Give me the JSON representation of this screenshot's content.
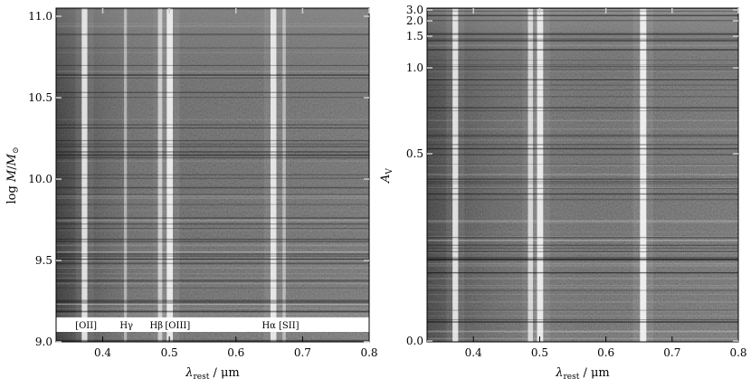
{
  "chart_data": [
    {
      "type": "heatmap",
      "panel": "left",
      "description_of_marks": "stacked rest-frame spectra sorted by stellar mass; bright vertical emission-line features",
      "xlabel_base": "λ",
      "xlabel_sub": "rest",
      "xlabel_unit": " / μm",
      "ylabel_prefix": "log ",
      "ylabel_var": "M",
      "ylabel_mid": "/",
      "ylabel_var2": "M",
      "ylabel_sub": "⊙",
      "xlim": [
        0.33,
        0.8
      ],
      "ylim": [
        9.0,
        11.05
      ],
      "xticks": [
        {
          "value": 0.4,
          "label": "0.4"
        },
        {
          "value": 0.5,
          "label": "0.5"
        },
        {
          "value": 0.6,
          "label": "0.6"
        },
        {
          "value": 0.7,
          "label": "0.7"
        },
        {
          "value": 0.8,
          "label": "0.8"
        }
      ],
      "yticks": [
        {
          "value": 9.0,
          "label": "9.0"
        },
        {
          "value": 9.5,
          "label": "9.5"
        },
        {
          "value": 10.0,
          "label": "10.0"
        },
        {
          "value": 10.5,
          "label": "10.5"
        },
        {
          "value": 11.0,
          "label": "11.0"
        }
      ],
      "emission_lines": [
        {
          "wavelength": 0.3727,
          "strength": 0.85
        },
        {
          "wavelength": 0.4341,
          "strength": 0.25
        },
        {
          "wavelength": 0.4861,
          "strength": 0.55
        },
        {
          "wavelength": 0.5007,
          "strength": 0.95
        },
        {
          "wavelength": 0.6563,
          "strength": 0.9
        },
        {
          "wavelength": 0.6724,
          "strength": 0.3
        }
      ],
      "line_labels": [
        {
          "x": 0.375,
          "label": "[OII]"
        },
        {
          "x": 0.4355,
          "label": "Hγ"
        },
        {
          "x": 0.4805,
          "label": "Hβ"
        },
        {
          "x": 0.5125,
          "label": "[OIII]"
        },
        {
          "x": 0.6495,
          "label": "Hα"
        },
        {
          "x": 0.6795,
          "label": "[SII]"
        }
      ]
    },
    {
      "type": "heatmap",
      "panel": "right",
      "description_of_marks": "stacked rest-frame spectra sorted by dust attenuation; bright vertical emission-line features",
      "xlabel_base": "λ",
      "xlabel_sub": "rest",
      "xlabel_unit": " / μm",
      "ylabel_var": "A",
      "ylabel_sub": "V",
      "xlim": [
        0.33,
        0.8
      ],
      "ylim": [
        0.0,
        3.0
      ],
      "yscale": "nonlinear",
      "xticks": [
        {
          "value": 0.4,
          "label": "0.4"
        },
        {
          "value": 0.5,
          "label": "0.5"
        },
        {
          "value": 0.6,
          "label": "0.6"
        },
        {
          "value": 0.7,
          "label": "0.7"
        },
        {
          "value": 0.8,
          "label": "0.8"
        }
      ],
      "yticks": [
        {
          "value": 0.0,
          "label": "0.0"
        },
        {
          "value": 0.5,
          "label": "0.5"
        },
        {
          "value": 1.0,
          "label": "1.0"
        },
        {
          "value": 1.5,
          "label": "1.5"
        },
        {
          "value": 2.0,
          "label": "2.0"
        },
        {
          "value": 3.0,
          "label": "3.0"
        }
      ],
      "emission_lines": [
        {
          "wavelength": 0.3727,
          "strength": 0.85
        },
        {
          "wavelength": 0.4861,
          "strength": 0.7
        },
        {
          "wavelength": 0.5007,
          "strength": 0.95
        },
        {
          "wavelength": 0.6563,
          "strength": 1.0
        }
      ]
    }
  ]
}
